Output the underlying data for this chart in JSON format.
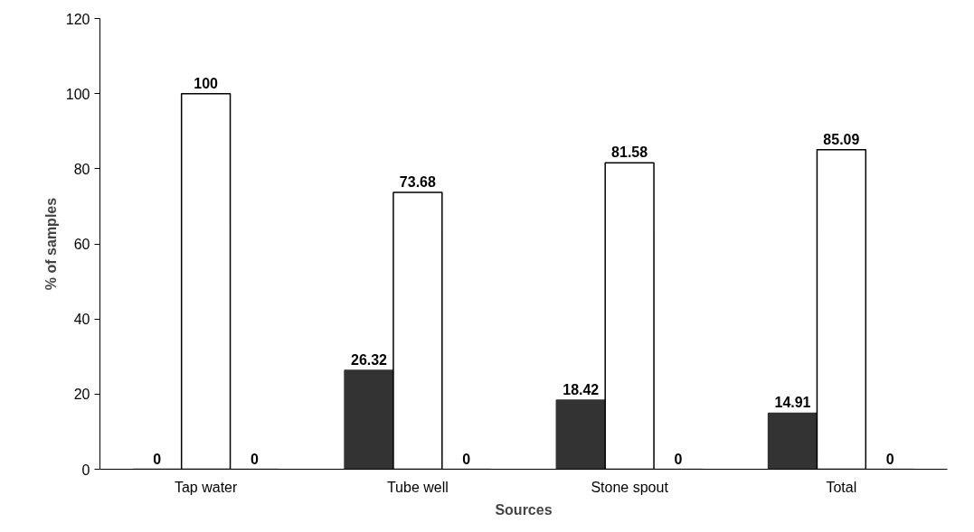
{
  "chart_data": {
    "type": "bar",
    "xlabel": "Sources",
    "ylabel": "% of samples",
    "categories": [
      "Tap water",
      "Tube well",
      "Stone spout",
      "Total"
    ],
    "series": [
      {
        "color": "#333333",
        "values": [
          0,
          26.32,
          18.42,
          14.91
        ]
      },
      {
        "color": "#ffffff",
        "values": [
          100,
          73.68,
          81.58,
          85.09
        ]
      },
      {
        "color": "#808080",
        "values": [
          0,
          0,
          0,
          0
        ]
      }
    ],
    "ylim": [
      0,
      120
    ],
    "yticks": [
      0,
      20,
      40,
      60,
      80,
      100,
      120
    ],
    "grid": false,
    "data_labels": true
  }
}
